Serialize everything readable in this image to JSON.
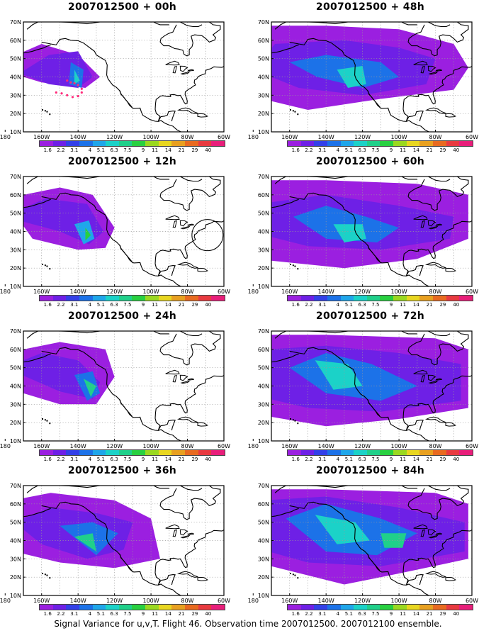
{
  "footer": "Signal Variance for u,v,T. Flight 46. Observation time 2007012500. 2007012100 ensemble.",
  "lat_labels": [
    "70N",
    "60N",
    "50N",
    "40N",
    "30N",
    "20N",
    "10N"
  ],
  "lon_labels": [
    "180",
    "160W",
    "140W",
    "120W",
    "100W",
    "80W",
    "60W"
  ],
  "colorbar": {
    "colors": [
      "#9b1fe0",
      "#6e20e6",
      "#3340e8",
      "#1c72e8",
      "#1fa6ea",
      "#1bd2c8",
      "#20d08a",
      "#28d040",
      "#9ad820",
      "#e8d620",
      "#e8a020",
      "#e86a20",
      "#e83a40",
      "#e81e7a"
    ],
    "labels": [
      "1.6",
      "2.2",
      "3.1",
      "4",
      "5.1",
      "6.3",
      "7.5",
      "9",
      "11",
      "14",
      "21",
      "29",
      "40",
      ""
    ]
  },
  "panels": [
    {
      "title": "2007012500 + 00h",
      "col": 0,
      "row": 0,
      "intensity": 0.15,
      "spread": 0.25
    },
    {
      "title": "2007012500 + 12h",
      "col": 0,
      "row": 1,
      "intensity": 0.3,
      "spread": 0.35
    },
    {
      "title": "2007012500 + 24h",
      "col": 0,
      "row": 2,
      "intensity": 0.38,
      "spread": 0.5
    },
    {
      "title": "2007012500 + 36h",
      "col": 0,
      "row": 3,
      "intensity": 0.42,
      "spread": 0.65
    },
    {
      "title": "2007012500 + 48h",
      "col": 1,
      "row": 0,
      "intensity": 0.45,
      "spread": 0.72
    },
    {
      "title": "2007012500 + 60h",
      "col": 1,
      "row": 1,
      "intensity": 0.48,
      "spread": 0.8
    },
    {
      "title": "2007012500 + 72h",
      "col": 1,
      "row": 2,
      "intensity": 0.52,
      "spread": 0.88
    },
    {
      "title": "2007012500 + 84h",
      "col": 1,
      "row": 3,
      "intensity": 0.55,
      "spread": 0.95
    }
  ]
}
